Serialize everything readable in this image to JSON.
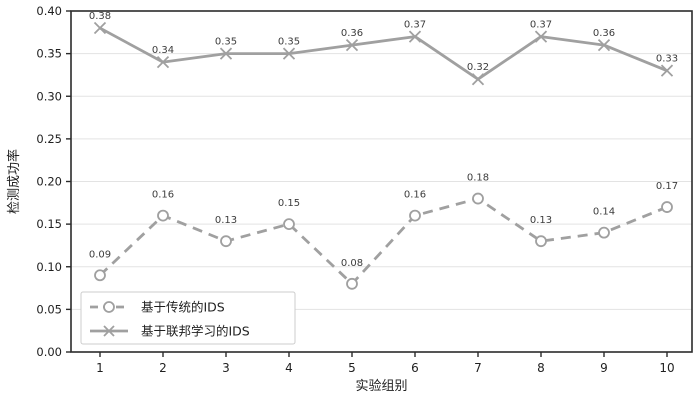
{
  "figure": {
    "background": "#ffffff"
  },
  "chart_data": {
    "type": "line",
    "title": "",
    "xlabel": "实验组别",
    "ylabel": "检测成功率",
    "x": [
      1,
      2,
      3,
      4,
      5,
      6,
      7,
      8,
      9,
      10
    ],
    "xtick_labels": [
      "1",
      "2",
      "3",
      "4",
      "5",
      "6",
      "7",
      "8",
      "9",
      "10"
    ],
    "ylim": [
      0.0,
      0.4
    ],
    "yticks": [
      0.0,
      0.05,
      0.1,
      0.15,
      0.2,
      0.25,
      0.3,
      0.35,
      0.4
    ],
    "ytick_decimals": 2,
    "grid": "horizontal",
    "legend_position": "lower left",
    "series": [
      {
        "name": "基于传统的IDS",
        "marker": "circle",
        "line_style": "dashed",
        "values": [
          0.09,
          0.16,
          0.13,
          0.15,
          0.08,
          0.16,
          0.18,
          0.13,
          0.14,
          0.17
        ],
        "labels": [
          "0.09",
          "0.16",
          "0.13",
          "0.15",
          "0.08",
          "0.16",
          "0.18",
          "0.13",
          "0.14",
          "0.17"
        ],
        "label_offset": 18
      },
      {
        "name": "基于联邦学习的IDS",
        "marker": "x",
        "line_style": "solid",
        "values": [
          0.38,
          0.34,
          0.35,
          0.35,
          0.36,
          0.37,
          0.32,
          0.37,
          0.36,
          0.33
        ],
        "labels": [
          "0.38",
          "0.34",
          "0.35",
          "0.35",
          "0.36",
          "0.37",
          "0.32",
          "0.37",
          "0.36",
          "0.33"
        ],
        "label_offset": 9
      }
    ],
    "colors": {
      "series_line": "#a0a0a0",
      "marker_fill": "#ffffff",
      "grid_line": "#e3e3e3",
      "spine": "#2b2b2b",
      "tick_label": "#1f1f1f",
      "data_label": "#3d3d3d",
      "axis_label": "#1f1f1f",
      "legend_border": "#cccccc",
      "legend_fill": "#ffffff"
    }
  }
}
